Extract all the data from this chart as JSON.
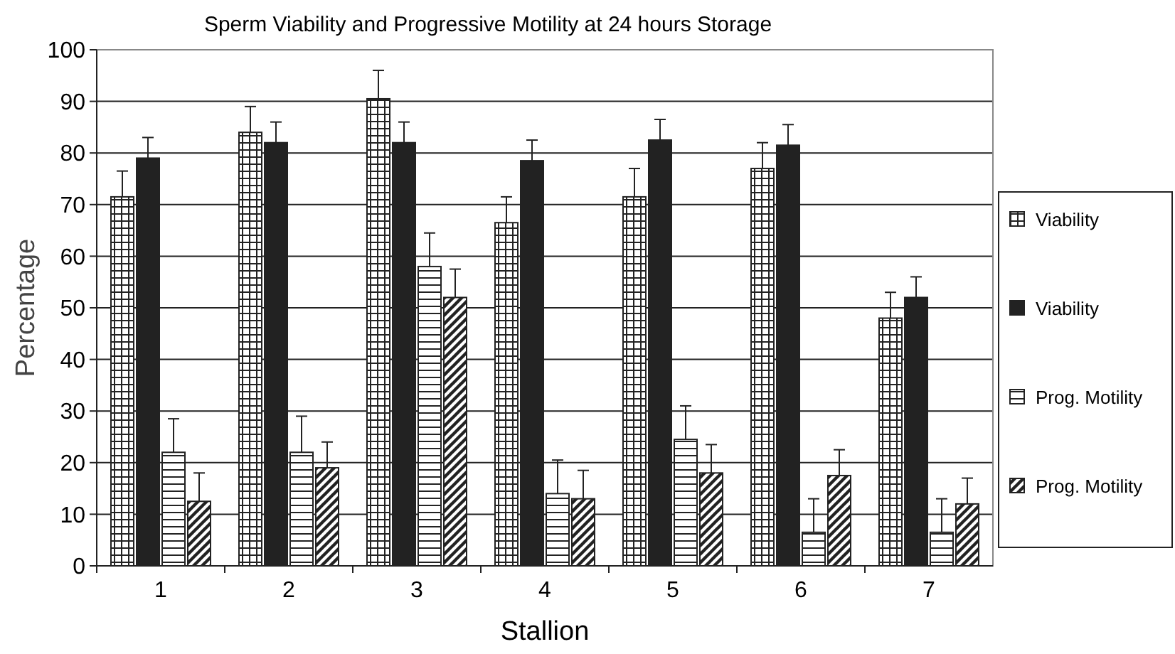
{
  "chart_data": {
    "type": "bar",
    "title": "Sperm Viability and Progressive Motility at 24 hours Storage",
    "xlabel": "Stallion",
    "ylabel": "Percentage",
    "categories": [
      "1",
      "2",
      "3",
      "4",
      "5",
      "6",
      "7"
    ],
    "ylim": [
      0,
      100
    ],
    "yticks": [
      0,
      10,
      20,
      30,
      40,
      50,
      60,
      70,
      80,
      90,
      100
    ],
    "grid": "y",
    "legend": "right",
    "series": [
      {
        "name": "Viability",
        "color": "#222222",
        "values": [
          71.5,
          84,
          90.5,
          66.5,
          71.5,
          77,
          48
        ],
        "errors": [
          [
            71.5,
            76.5
          ],
          [
            84,
            89
          ],
          [
            90.5,
            96
          ],
          [
            66.5,
            71.5
          ],
          [
            71.5,
            77
          ],
          [
            77,
            82
          ],
          [
            48,
            53
          ]
        ]
      },
      {
        "name": "Viability",
        "color": "#222222",
        "values": [
          79,
          82,
          82,
          78.5,
          82.5,
          81.5,
          52
        ],
        "errors": [
          [
            79,
            83
          ],
          [
            82,
            86
          ],
          [
            82,
            86
          ],
          [
            78.5,
            82.5
          ],
          [
            82.5,
            86.5
          ],
          [
            81.5,
            85.5
          ],
          [
            52,
            56
          ]
        ]
      },
      {
        "name": "Prog. Motility",
        "color": "#222222",
        "values": [
          22,
          22,
          58,
          14,
          24.5,
          6.5,
          6.5
        ],
        "errors": [
          [
            22,
            28.5
          ],
          [
            22,
            29
          ],
          [
            58,
            64.5
          ],
          [
            14,
            20.5
          ],
          [
            24.5,
            31
          ],
          [
            6.5,
            13
          ],
          [
            6.5,
            13
          ]
        ]
      },
      {
        "name": "Prog. Motility",
        "color": "#222222",
        "values": [
          12.5,
          19,
          52,
          13,
          18,
          17.5,
          12
        ],
        "errors": [
          [
            12.5,
            18
          ],
          [
            19,
            24
          ],
          [
            52,
            57.5
          ],
          [
            13,
            18.5
          ],
          [
            18,
            23.5
          ],
          [
            17.5,
            22.5
          ],
          [
            12,
            17
          ]
        ]
      }
    ]
  }
}
